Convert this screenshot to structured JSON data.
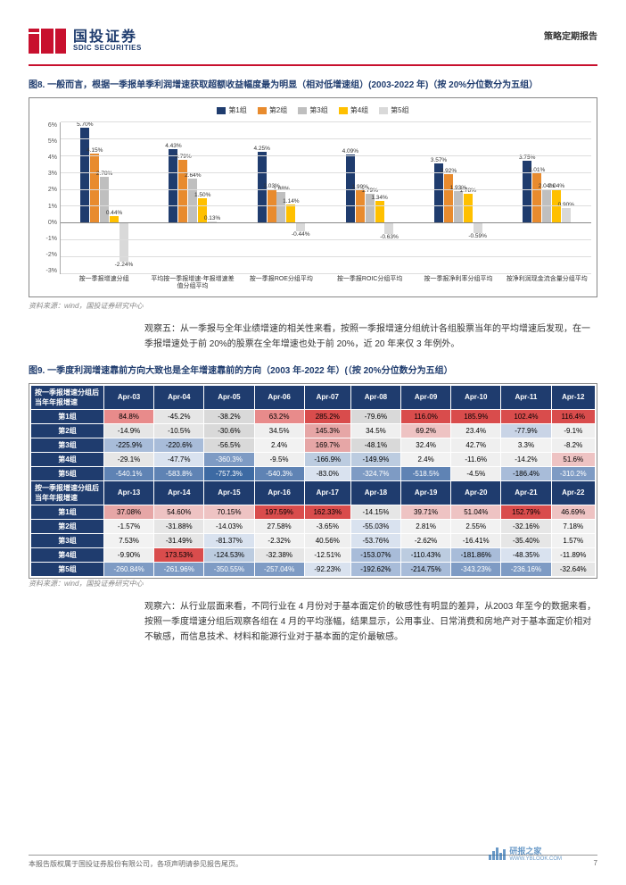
{
  "header": {
    "logo_cn": "国投证券",
    "logo_en": "SDIC SECURITIES",
    "doc_type": "策略定期报告",
    "logo_color": "#c8102e",
    "brand_text_color": "#1f3c6e"
  },
  "fig8": {
    "title": "图8. 一般而言，根据一季报单季利润增速获取超额收益幅度最为明显（相对低增速组）(2003-2022 年)（按 20%分位数分为五组）",
    "legend": [
      "第1组",
      "第2组",
      "第3组",
      "第4组",
      "第5组"
    ],
    "series_colors": [
      "#1f3c6e",
      "#e88b2e",
      "#bfbfbf",
      "#ffc000",
      "#d9d9d9"
    ],
    "ylim": [
      -3,
      6
    ],
    "ytick_step": 1,
    "ylabels": [
      "6%",
      "5%",
      "4%",
      "3%",
      "2%",
      "1%",
      "0%",
      "-1%",
      "-2%",
      "-3%"
    ],
    "categories": [
      "按一季报增速分组",
      "平均按一季报增速-年报增速差值分组平均",
      "按一季报ROE分组平均",
      "按一季报ROIC分组平均",
      "按一季报净利率分组平均",
      "按净利润现金流含量分组平均"
    ],
    "data": [
      [
        5.7,
        4.15,
        2.78,
        0.44,
        -2.24
      ],
      [
        4.43,
        3.79,
        2.64,
        1.5,
        0.13
      ],
      [
        4.25,
        2.03,
        1.88,
        1.14,
        -0.44
      ],
      [
        4.09,
        1.99,
        1.79,
        1.34,
        -0.63
      ],
      [
        3.57,
        2.92,
        1.93,
        1.78,
        -0.59
      ],
      [
        3.75,
        3.01,
        2.04,
        2.04,
        0.9
      ]
    ],
    "special_first_bar": "2.04",
    "label_fontsize": 6.5,
    "background_color": "#ffffff",
    "grid_color": "#dddddd"
  },
  "source": "资料来源：wind，国投证券研究中心",
  "obs5": "观察五：从一季报与全年业绩增速的相关性来看，按照一季报增速分组统计各组股票当年的平均增速后发现，在一季报增速处于前 20%的股票在全年增速也处于前 20%，近 20 年来仅 3 年例外。",
  "fig9": {
    "title": "图9. 一季度利润增速靠前方向大致也是全年增速靠前的方向（2003 年-2022 年）(（按 20%分位数分为五组）",
    "section1_label": "按一季报增速分组后当年年报增速",
    "section2_label": "按一季报增速分组后当年年报增速",
    "row_labels": [
      "第1组",
      "第2组",
      "第3组",
      "第4组",
      "第5组"
    ],
    "cols1": [
      "Apr-03",
      "Apr-04",
      "Apr-05",
      "Apr-06",
      "Apr-07",
      "Apr-08",
      "Apr-09",
      "Apr-10",
      "Apr-11",
      "Apr-12"
    ],
    "cols2": [
      "Apr-13",
      "Apr-14",
      "Apr-15",
      "Apr-16",
      "Apr-17",
      "Apr-18",
      "Apr-19",
      "Apr-20",
      "Apr-21",
      "Apr-22"
    ],
    "rows1": [
      [
        "84.8%",
        "-45.2%",
        "-38.2%",
        "63.2%",
        "285.2%",
        "-79.6%",
        "116.0%",
        "185.9%",
        "102.4%",
        "116.4%"
      ],
      [
        "-14.9%",
        "-10.5%",
        "-30.6%",
        "34.5%",
        "145.3%",
        "34.5%",
        "69.2%",
        "23.4%",
        "-77.9%",
        "-9.1%"
      ],
      [
        "-225.9%",
        "-220.6%",
        "-56.5%",
        "2.4%",
        "169.7%",
        "-48.1%",
        "32.4%",
        "42.7%",
        "3.3%",
        "-8.2%"
      ],
      [
        "-29.1%",
        "-47.7%",
        "-360.3%",
        "-9.5%",
        "-166.9%",
        "-149.9%",
        "2.4%",
        "-11.6%",
        "-14.2%",
        "51.6%"
      ],
      [
        "-540.1%",
        "-583.8%",
        "-757.3%",
        "-540.3%",
        "-83.0%",
        "-324.7%",
        "-518.5%",
        "-4.5%",
        "-186.4%",
        "-310.2%"
      ]
    ],
    "rows2": [
      [
        "37.08%",
        "54.60%",
        "70.15%",
        "197.59%",
        "162.33%",
        "-14.15%",
        "39.71%",
        "51.04%",
        "152.79%",
        "46.69%"
      ],
      [
        "-1.57%",
        "-31.88%",
        "-14.03%",
        "27.58%",
        "-3.65%",
        "-55.03%",
        "2.81%",
        "2.55%",
        "-32.16%",
        "7.18%"
      ],
      [
        "7.53%",
        "-31.49%",
        "-81.37%",
        "-2.32%",
        "40.56%",
        "-53.76%",
        "-2.62%",
        "-16.41%",
        "-35.40%",
        "1.57%"
      ],
      [
        "-9.90%",
        "173.53%",
        "-124.53%",
        "-32.38%",
        "-12.51%",
        "-153.07%",
        "-110.43%",
        "-181.86%",
        "-48.35%",
        "-11.89%"
      ],
      [
        "-260.84%",
        "-261.96%",
        "-350.55%",
        "-257.04%",
        "-92.23%",
        "-192.62%",
        "-214.75%",
        "-343.23%",
        "-236.16%",
        "-32.64%"
      ]
    ],
    "colors1": [
      [
        "#e88b8b",
        "#e6e6e6",
        "#d9d9d9",
        "#e88b8b",
        "#d94c4c",
        "#d9d9d9",
        "#d94c4c",
        "#d94c4c",
        "#d94c4c",
        "#d94c4c"
      ],
      [
        "#e6e6e6",
        "#e6e6e6",
        "#d9d9d9",
        "#efefef",
        "#e6a6a6",
        "#efefef",
        "#eec3c3",
        "#efefef",
        "#c9d4e6",
        "#efefef"
      ],
      [
        "#a8bcd9",
        "#a8bcd9",
        "#d9d9d9",
        "#f2f2f2",
        "#e6a6a6",
        "#d9d9d9",
        "#efefef",
        "#efefef",
        "#f2f2f2",
        "#efefef"
      ],
      [
        "#e6e6e6",
        "#d9e2ef",
        "#7e9bc4",
        "#efefef",
        "#bccce0",
        "#bccce0",
        "#f2f2f2",
        "#efefef",
        "#efefef",
        "#eec3c3"
      ],
      [
        "#5f83b4",
        "#5f83b4",
        "#3d6aa3",
        "#5f83b4",
        "#d9e2ef",
        "#7e9bc4",
        "#5f83b4",
        "#efefef",
        "#a8bcd9",
        "#7e9bc4"
      ]
    ],
    "colors2": [
      [
        "#e6a6a6",
        "#eec3c3",
        "#eec3c3",
        "#d94c4c",
        "#d94c4c",
        "#e6e6e6",
        "#eec3c3",
        "#eec3c3",
        "#d94c4c",
        "#eec3c3"
      ],
      [
        "#f2f2f2",
        "#e6e6e6",
        "#efefef",
        "#efefef",
        "#efefef",
        "#d9e2ef",
        "#f2f2f2",
        "#f2f2f2",
        "#e6e6e6",
        "#f2f2f2"
      ],
      [
        "#f2f2f2",
        "#e6e6e6",
        "#d9e2ef",
        "#f2f2f2",
        "#efefef",
        "#d9e2ef",
        "#f2f2f2",
        "#efefef",
        "#e6e6e6",
        "#f2f2f2"
      ],
      [
        "#efefef",
        "#d94c4c",
        "#bccce0",
        "#e6e6e6",
        "#efefef",
        "#a8bcd9",
        "#bccce0",
        "#a8bcd9",
        "#d9e2ef",
        "#efefef"
      ],
      [
        "#7e9bc4",
        "#7e9bc4",
        "#7e9bc4",
        "#7e9bc4",
        "#d9e2ef",
        "#a8bcd9",
        "#a8bcd9",
        "#7e9bc4",
        "#7e9bc4",
        "#e6e6e6"
      ]
    ],
    "textcolors1": [
      [
        "#000",
        "#000",
        "#000",
        "#000",
        "#000",
        "#000",
        "#000",
        "#000",
        "#000",
        "#000"
      ],
      [
        "#000",
        "#000",
        "#000",
        "#000",
        "#000",
        "#000",
        "#000",
        "#000",
        "#000",
        "#000"
      ],
      [
        "#000",
        "#000",
        "#000",
        "#000",
        "#000",
        "#000",
        "#000",
        "#000",
        "#000",
        "#000"
      ],
      [
        "#000",
        "#000",
        "#fff",
        "#000",
        "#000",
        "#000",
        "#000",
        "#000",
        "#000",
        "#000"
      ],
      [
        "#fff",
        "#fff",
        "#fff",
        "#fff",
        "#000",
        "#fff",
        "#fff",
        "#000",
        "#000",
        "#fff"
      ]
    ],
    "textcolors2": [
      [
        "#000",
        "#000",
        "#000",
        "#000",
        "#000",
        "#000",
        "#000",
        "#000",
        "#000",
        "#000"
      ],
      [
        "#000",
        "#000",
        "#000",
        "#000",
        "#000",
        "#000",
        "#000",
        "#000",
        "#000",
        "#000"
      ],
      [
        "#000",
        "#000",
        "#000",
        "#000",
        "#000",
        "#000",
        "#000",
        "#000",
        "#000",
        "#000"
      ],
      [
        "#000",
        "#000",
        "#000",
        "#000",
        "#000",
        "#000",
        "#000",
        "#000",
        "#000",
        "#000"
      ],
      [
        "#fff",
        "#fff",
        "#fff",
        "#fff",
        "#000",
        "#000",
        "#000",
        "#fff",
        "#fff",
        "#000"
      ]
    ]
  },
  "obs6": "观察六：从行业层面来看，不同行业在 4 月份对于基本面定价的敏感性有明显的差异，从2003 年至今的数据来看，按照一季度增速分组后观察各组在 4 月的平均涨幅，结果显示，公用事业、日常消费和房地产对于基本面定价相对不敏感，而信息技术、材料和能源行业对于基本面的定价最敏感。",
  "footer": {
    "disclaimer": "本报告版权属于国投证券股份有限公司，各项声明请参见报告尾页。",
    "page": "7",
    "watermark": "研报之家",
    "watermark_url": "WWW.YBLOOK.COM"
  }
}
